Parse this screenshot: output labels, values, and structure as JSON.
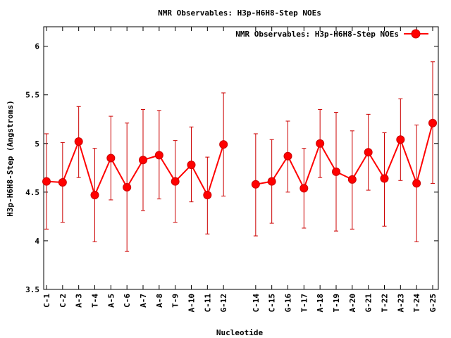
{
  "chart_data": {
    "type": "line",
    "title": "NMR Observables: H3p-H6H8-Step NOEs",
    "xlabel": "Nucleotide",
    "ylabel": "H3p-H6H8-Step (Angstroms)",
    "ylim": [
      3.5,
      6.2
    ],
    "yticks": [
      "3.5",
      "4",
      "4.5",
      "5",
      "5.5",
      "6"
    ],
    "grid": false,
    "legend_position": "top-right",
    "series_color": "#ff0000",
    "errorbar_color": "#cc0000",
    "categories": [
      "C-1",
      "C-2",
      "A-3",
      "T-4",
      "A-5",
      "C-6",
      "A-7",
      "A-8",
      "T-9",
      "A-10",
      "C-11",
      "G-12",
      "",
      "C-14",
      "C-15",
      "G-16",
      "T-17",
      "A-18",
      "T-19",
      "A-20",
      "G-21",
      "T-22",
      "A-23",
      "T-24",
      "G-25"
    ],
    "series": [
      {
        "name": "NMR Observables: H3p-H6H8-Step NOEs",
        "values": [
          4.61,
          4.6,
          5.02,
          4.47,
          4.85,
          4.55,
          4.83,
          4.88,
          4.61,
          4.78,
          4.47,
          4.99,
          null,
          4.58,
          4.61,
          4.87,
          4.54,
          5.0,
          4.71,
          4.63,
          4.91,
          4.64,
          5.04,
          4.59,
          5.21
        ],
        "err_low": [
          4.12,
          4.19,
          4.65,
          3.99,
          4.42,
          3.89,
          4.31,
          4.43,
          4.19,
          4.4,
          4.07,
          4.46,
          null,
          4.05,
          4.18,
          4.5,
          4.13,
          4.65,
          4.1,
          4.12,
          4.52,
          4.15,
          4.62,
          3.99,
          4.59
        ],
        "err_high": [
          5.1,
          5.01,
          5.38,
          4.95,
          5.28,
          5.21,
          5.35,
          5.34,
          5.03,
          5.17,
          4.86,
          5.52,
          null,
          5.1,
          5.04,
          5.23,
          4.95,
          5.35,
          5.32,
          5.13,
          5.3,
          5.11,
          5.46,
          5.19,
          5.84
        ]
      }
    ]
  }
}
